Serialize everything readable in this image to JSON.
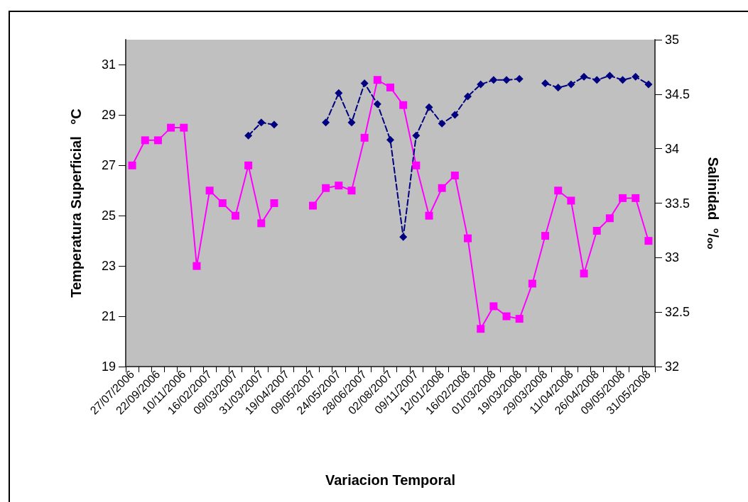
{
  "chart_data": {
    "type": "line",
    "xlabel": "Variacion Temporal",
    "ylabel": "Temperatura Superficial   °C",
    "y2label": "Salinidad  °/ₒₒ",
    "categories": [
      "27/07/2006",
      null,
      "22/09/2006",
      null,
      "10/11/2006",
      null,
      "16/02/2007",
      null,
      "09/03/2007",
      null,
      "31/03/2007",
      null,
      "19/04/2007",
      null,
      "09/05/2007",
      null,
      "24/05/2007",
      null,
      "28/06/2007",
      null,
      "02/08/2007",
      null,
      "09/11/2007",
      null,
      "12/01/2008",
      null,
      "16/02/2008",
      null,
      "01/03/2008",
      null,
      "19/03/2008",
      null,
      "29/03/2008",
      null,
      "11/04/2008",
      null,
      "26/04/2008",
      null,
      "09/05/2008",
      null,
      "31/05/2008"
    ],
    "series": [
      {
        "color": "#ff00ff",
        "marker": "square",
        "line_style": "solid",
        "values": [
          27.0,
          28.0,
          28.0,
          28.5,
          28.5,
          23.0,
          26.0,
          25.5,
          25.0,
          27.0,
          24.7,
          25.5,
          null,
          null,
          25.4,
          26.1,
          26.2,
          26.0,
          28.1,
          30.4,
          30.1,
          29.4,
          27.0,
          25.0,
          26.1,
          26.6,
          24.1,
          20.5,
          21.4,
          21.0,
          20.9,
          22.3,
          24.2,
          26.0,
          25.6,
          22.7,
          24.4,
          24.9,
          25.7,
          25.7,
          24.0
        ]
      },
      {
        "color": "#000080",
        "marker": "diamond",
        "line_style": "dashed",
        "axis": "y2",
        "values": [
          null,
          null,
          null,
          null,
          null,
          null,
          null,
          null,
          null,
          34.12,
          34.24,
          34.22,
          null,
          null,
          null,
          34.24,
          34.51,
          34.24,
          34.6,
          34.41,
          34.08,
          33.19,
          34.12,
          34.38,
          34.23,
          34.31,
          34.48,
          34.59,
          34.63,
          34.63,
          34.64,
          null,
          34.6,
          34.56,
          34.59,
          34.66,
          34.63,
          34.67,
          34.63,
          34.66,
          34.59
        ]
      }
    ],
    "ylim": [
      19,
      32
    ],
    "yticks": [
      19,
      21,
      23,
      25,
      27,
      29,
      31
    ],
    "y2lim": [
      32,
      35
    ],
    "y2ticks": [
      32,
      32.5,
      33,
      33.5,
      34,
      34.5,
      35
    ],
    "grid": false
  }
}
